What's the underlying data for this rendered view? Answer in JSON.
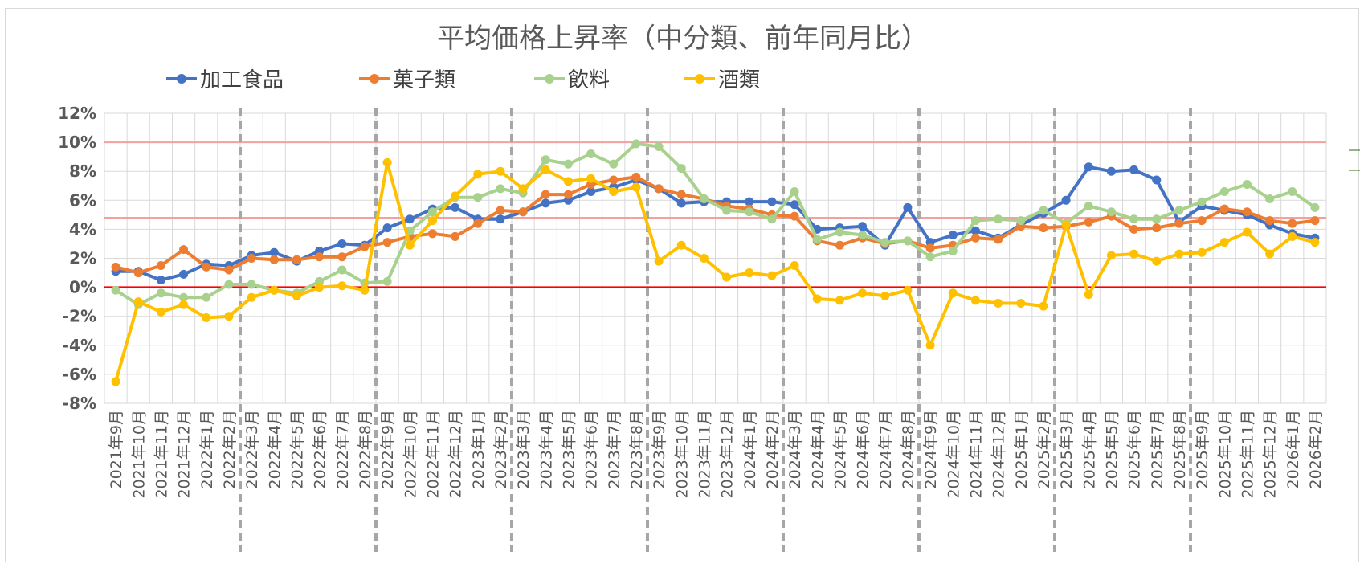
{
  "chart_data": {
    "type": "line",
    "title": "平均価格上昇率（中分類、前年同月比）",
    "xlabel": "",
    "ylabel": "",
    "ylim": [
      -8,
      12
    ],
    "y_ticks": [
      "12%",
      "10%",
      "8%",
      "6%",
      "4%",
      "2%",
      "0%",
      "-2%",
      "-4%",
      "-6%",
      "-8%"
    ],
    "y_tick_values": [
      12,
      10,
      8,
      6,
      4,
      2,
      0,
      -2,
      -4,
      -6,
      -8
    ],
    "grid": true,
    "legend": "top",
    "categories": [
      "2021年9月",
      "2021年10月",
      "2021年11月",
      "2021年12月",
      "2022年1月",
      "2022年2月",
      "2022年3月",
      "2022年4月",
      "2022年5月",
      "2022年6月",
      "2022年7月",
      "2022年8月",
      "2022年9月",
      "2022年10月",
      "2022年11月",
      "2022年12月",
      "2023年1月",
      "2023年2月",
      "2023年3月",
      "2023年4月",
      "2023年5月",
      "2023年6月",
      "2023年7月",
      "2023年8月",
      "2023年9月",
      "2023年10月",
      "2023年11月",
      "2023年12月",
      "2024年1月",
      "2024年2月",
      "2024年3月",
      "2024年4月",
      "2024年5月",
      "2024年6月",
      "2024年7月",
      "2024年8月",
      "2024年9月",
      "2024年10月",
      "2024年11月",
      "2024年12月",
      "2025年1月",
      "2025年2月",
      "2025年3月",
      "2025年4月",
      "2025年5月",
      "2025年6月",
      "2025年7月",
      "2025年8月",
      "2025年9月",
      "2025年10月",
      "2025年11月",
      "2025年12月",
      "2026年1月",
      "2026年2月"
    ],
    "series": [
      {
        "name": "加工食品",
        "color": "#4472c4",
        "values": [
          1.1,
          1.1,
          0.5,
          0.9,
          1.6,
          1.5,
          2.2,
          2.4,
          1.8,
          2.5,
          3.0,
          2.9,
          4.1,
          4.7,
          5.4,
          5.5,
          4.7,
          4.7,
          5.2,
          5.8,
          6.0,
          6.6,
          6.9,
          7.4,
          6.8,
          5.8,
          5.9,
          5.9,
          5.9,
          5.9,
          5.7,
          4.0,
          4.1,
          4.2,
          2.9,
          5.5,
          3.1,
          3.6,
          3.9,
          3.4,
          4.3,
          5.1,
          6.0,
          8.3,
          8.0,
          8.1,
          7.4,
          4.5,
          5.6,
          5.3,
          5.0,
          4.3,
          3.7,
          3.4
        ]
      },
      {
        "name": "菓子類",
        "color": "#ed7d31",
        "values": [
          1.4,
          1.0,
          1.5,
          2.6,
          1.4,
          1.2,
          2.0,
          1.9,
          1.9,
          2.1,
          2.1,
          2.8,
          3.1,
          3.5,
          3.7,
          3.5,
          4.4,
          5.3,
          5.2,
          6.4,
          6.4,
          7.1,
          7.4,
          7.6,
          6.8,
          6.4,
          6.1,
          5.6,
          5.4,
          5.0,
          4.9,
          3.2,
          2.9,
          3.4,
          3.0,
          3.2,
          2.7,
          2.9,
          3.4,
          3.3,
          4.2,
          4.1,
          4.2,
          4.5,
          4.9,
          4.0,
          4.1,
          4.4,
          4.6,
          5.4,
          5.2,
          4.6,
          4.4,
          4.6
        ]
      },
      {
        "name": "飲料",
        "color": "#a9d18e",
        "values": [
          -0.2,
          -1.2,
          -0.4,
          -0.7,
          -0.7,
          0.2,
          0.2,
          -0.2,
          -0.4,
          0.4,
          1.2,
          0.3,
          0.4,
          3.9,
          5.2,
          6.2,
          6.2,
          6.8,
          6.5,
          8.8,
          8.5,
          9.2,
          8.5,
          9.9,
          9.7,
          8.2,
          6.1,
          5.3,
          5.2,
          4.7,
          6.6,
          3.3,
          3.8,
          3.6,
          3.1,
          3.2,
          2.1,
          2.5,
          4.6,
          4.7,
          4.6,
          5.3,
          4.4,
          5.6,
          5.2,
          4.7,
          4.7,
          5.3,
          5.9,
          6.6,
          7.1,
          6.1,
          6.6,
          5.5
        ]
      },
      {
        "name": "酒類",
        "color": "#ffc000",
        "values": [
          -6.5,
          -1.0,
          -1.7,
          -1.2,
          -2.1,
          -2.0,
          -0.7,
          -0.2,
          -0.6,
          0.0,
          0.1,
          -0.2,
          8.6,
          2.9,
          4.6,
          6.3,
          7.8,
          8.0,
          6.8,
          8.1,
          7.3,
          7.5,
          6.6,
          6.9,
          1.8,
          2.9,
          2.0,
          0.7,
          1.0,
          0.8,
          1.5,
          -0.8,
          -0.9,
          -0.4,
          -0.6,
          -0.2,
          -4.0,
          -0.4,
          -0.9,
          -1.1,
          -1.1,
          -1.3,
          4.3,
          -0.5,
          2.2,
          2.3,
          1.8,
          2.3,
          2.4,
          3.1,
          3.8,
          2.3,
          3.5,
          3.1
        ]
      }
    ],
    "reference_lines": [
      {
        "value": 10,
        "color": "#f4a09c"
      },
      {
        "value": 4.8,
        "color": "#f4a09c"
      },
      {
        "value": 0,
        "color": "#ff0000"
      }
    ],
    "period_dividers_after": [
      "2022年2月",
      "2022年8月",
      "2023年2月",
      "2023年8月",
      "2024年2月",
      "2024年8月",
      "2025年2月",
      "2025年8月"
    ]
  }
}
